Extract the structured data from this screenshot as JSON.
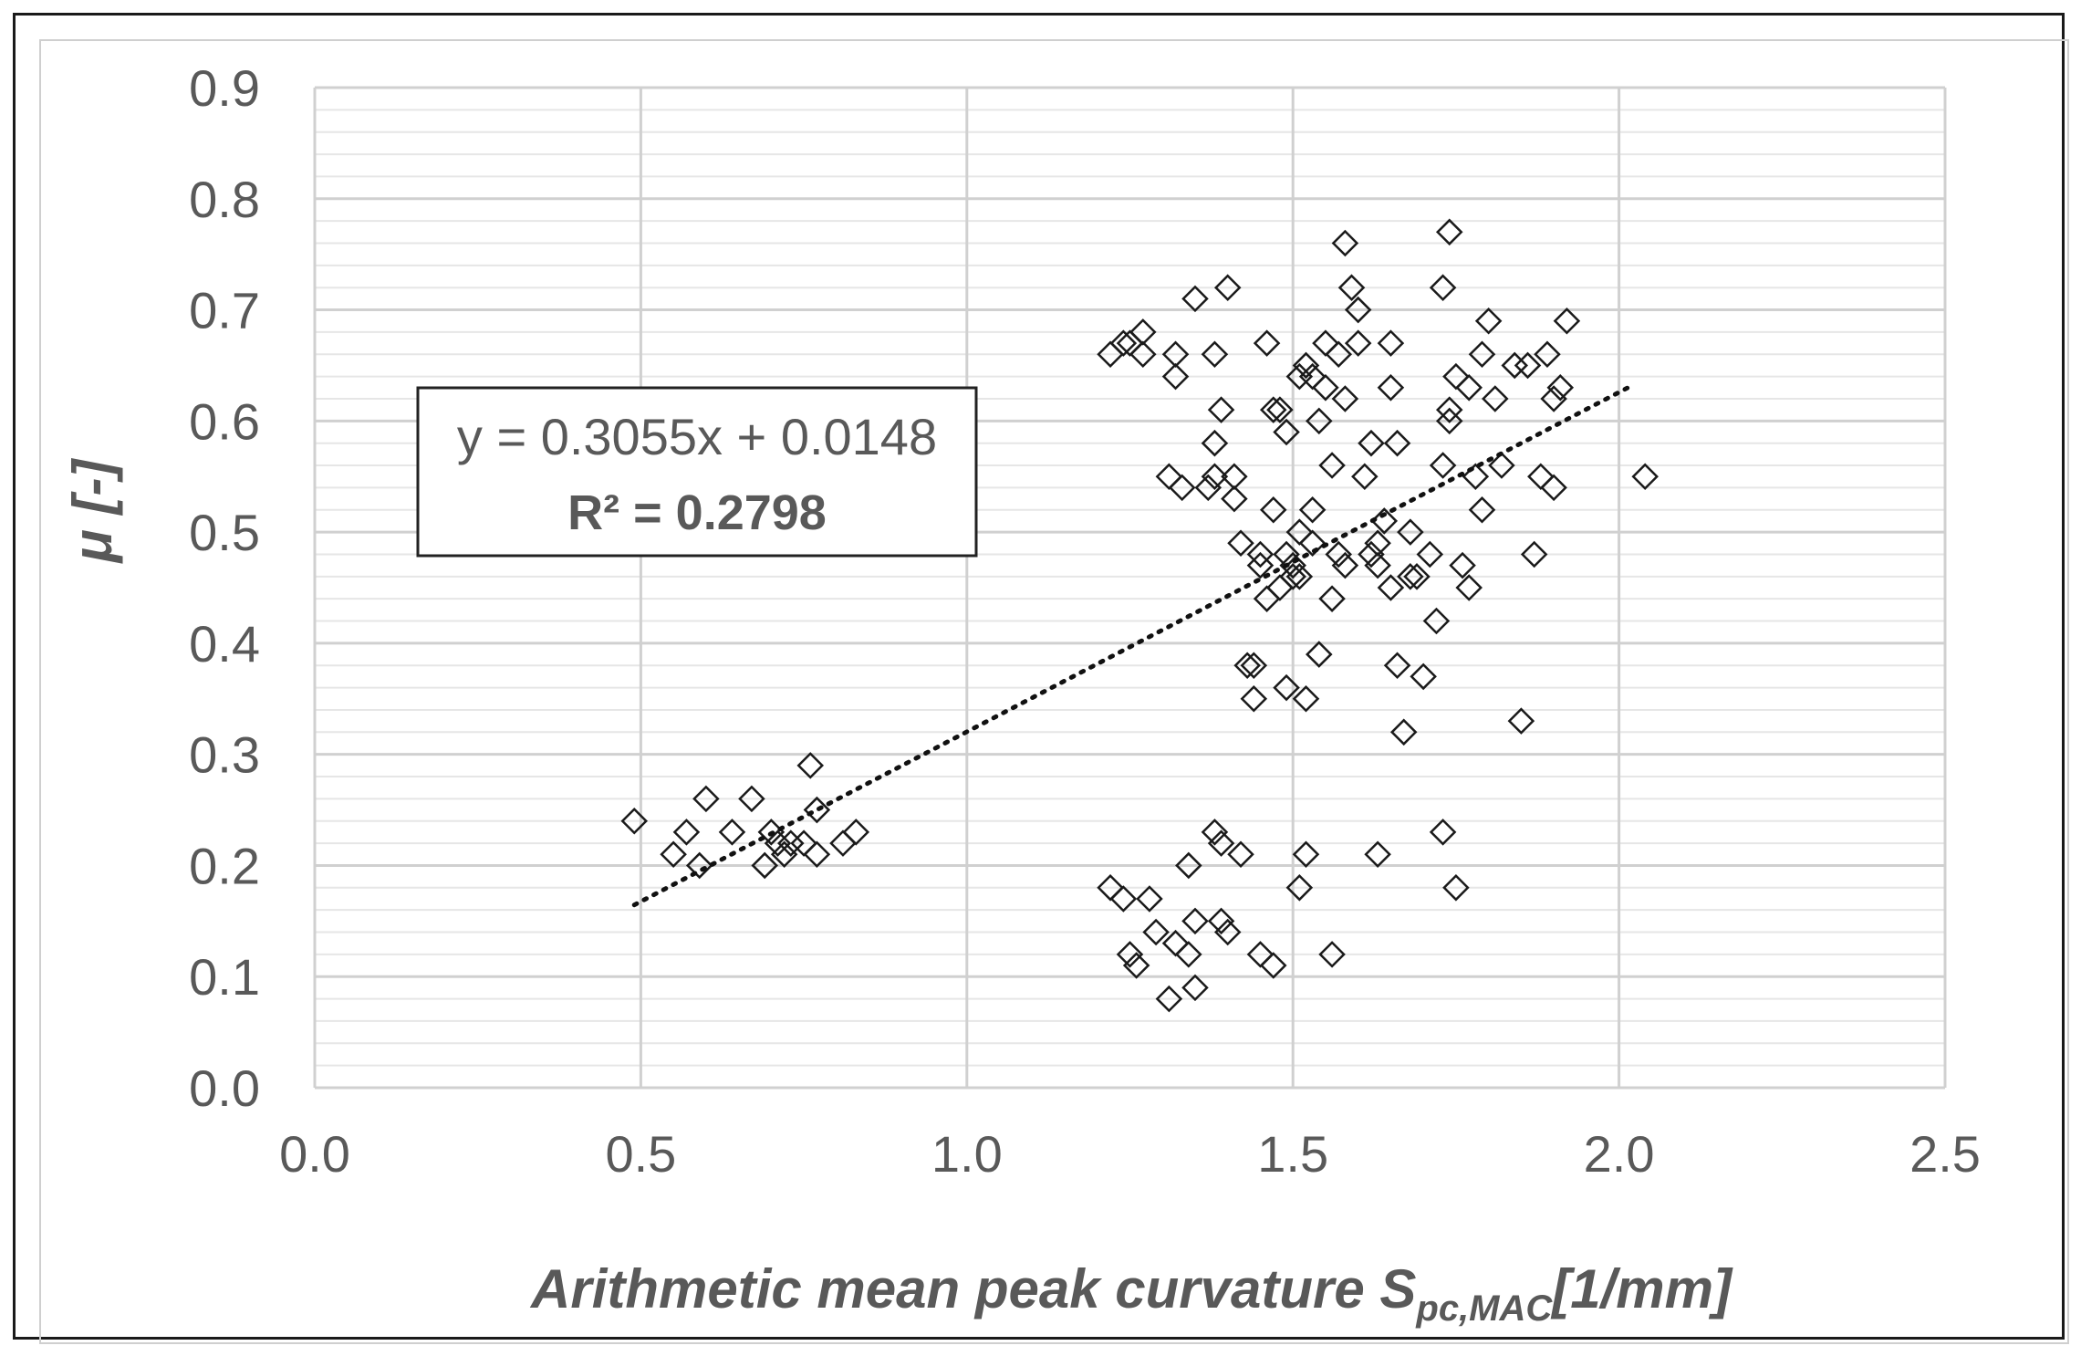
{
  "chart_data": {
    "type": "scatter",
    "xlabel_main": "Arithmetic mean peak curvature S",
    "xlabel_sub": "pc,MAC",
    "xlabel_unit": "[1/mm]",
    "ylabel": "μ [-]",
    "xlim": [
      0.0,
      2.5
    ],
    "ylim": [
      0.0,
      0.9
    ],
    "x_ticks": [
      "0.0",
      "0.5",
      "1.0",
      "1.5",
      "2.0",
      "2.5"
    ],
    "y_ticks": [
      "0.0",
      "0.1",
      "0.2",
      "0.3",
      "0.4",
      "0.5",
      "0.6",
      "0.7",
      "0.8",
      "0.9"
    ],
    "grid": true,
    "marker": "hollow-diamond",
    "trendline": {
      "type": "linear",
      "slope": 0.3055,
      "intercept": 0.0148,
      "x_range": [
        0.49,
        2.02
      ],
      "style": "dotted",
      "equation_label": "y = 0.3055x + 0.0148",
      "r2_label": "R² = 0.2798"
    },
    "series": [
      {
        "points": [
          [
            0.49,
            0.24
          ],
          [
            0.55,
            0.21
          ],
          [
            0.57,
            0.23
          ],
          [
            0.59,
            0.2
          ],
          [
            0.6,
            0.26
          ],
          [
            0.64,
            0.23
          ],
          [
            0.67,
            0.26
          ],
          [
            0.69,
            0.2
          ],
          [
            0.7,
            0.23
          ],
          [
            0.71,
            0.22
          ],
          [
            0.72,
            0.21
          ],
          [
            0.73,
            0.22
          ],
          [
            0.75,
            0.22
          ],
          [
            0.76,
            0.29
          ],
          [
            0.77,
            0.21
          ],
          [
            0.77,
            0.25
          ],
          [
            0.81,
            0.22
          ],
          [
            0.83,
            0.23
          ],
          [
            1.22,
            0.18
          ],
          [
            1.24,
            0.17
          ],
          [
            1.25,
            0.12
          ],
          [
            1.26,
            0.11
          ],
          [
            1.28,
            0.17
          ],
          [
            1.29,
            0.14
          ],
          [
            1.31,
            0.08
          ],
          [
            1.32,
            0.13
          ],
          [
            1.34,
            0.12
          ],
          [
            1.34,
            0.2
          ],
          [
            1.35,
            0.09
          ],
          [
            1.35,
            0.15
          ],
          [
            1.38,
            0.23
          ],
          [
            1.39,
            0.22
          ],
          [
            1.39,
            0.15
          ],
          [
            1.4,
            0.14
          ],
          [
            1.42,
            0.21
          ],
          [
            1.45,
            0.12
          ],
          [
            1.47,
            0.11
          ],
          [
            1.51,
            0.18
          ],
          [
            1.52,
            0.21
          ],
          [
            1.56,
            0.12
          ],
          [
            1.63,
            0.21
          ],
          [
            1.73,
            0.23
          ],
          [
            1.75,
            0.18
          ],
          [
            1.22,
            0.66
          ],
          [
            1.24,
            0.67
          ],
          [
            1.25,
            0.67
          ],
          [
            1.27,
            0.68
          ],
          [
            1.27,
            0.66
          ],
          [
            1.31,
            0.55
          ],
          [
            1.32,
            0.66
          ],
          [
            1.32,
            0.64
          ],
          [
            1.33,
            0.54
          ],
          [
            1.35,
            0.71
          ],
          [
            1.37,
            0.54
          ],
          [
            1.38,
            0.55
          ],
          [
            1.38,
            0.66
          ],
          [
            1.38,
            0.58
          ],
          [
            1.39,
            0.61
          ],
          [
            1.4,
            0.72
          ],
          [
            1.41,
            0.53
          ],
          [
            1.41,
            0.55
          ],
          [
            1.42,
            0.49
          ],
          [
            1.43,
            0.38
          ],
          [
            1.44,
            0.35
          ],
          [
            1.44,
            0.38
          ],
          [
            1.45,
            0.47
          ],
          [
            1.45,
            0.48
          ],
          [
            1.46,
            0.67
          ],
          [
            1.46,
            0.44
          ],
          [
            1.47,
            0.52
          ],
          [
            1.47,
            0.61
          ],
          [
            1.48,
            0.45
          ],
          [
            1.48,
            0.61
          ],
          [
            1.49,
            0.36
          ],
          [
            1.49,
            0.59
          ],
          [
            1.49,
            0.48
          ],
          [
            1.5,
            0.46
          ],
          [
            1.5,
            0.47
          ],
          [
            1.51,
            0.46
          ],
          [
            1.51,
            0.5
          ],
          [
            1.51,
            0.64
          ],
          [
            1.52,
            0.65
          ],
          [
            1.52,
            0.35
          ],
          [
            1.53,
            0.49
          ],
          [
            1.53,
            0.52
          ],
          [
            1.53,
            0.64
          ],
          [
            1.54,
            0.39
          ],
          [
            1.54,
            0.6
          ],
          [
            1.55,
            0.67
          ],
          [
            1.55,
            0.63
          ],
          [
            1.56,
            0.44
          ],
          [
            1.56,
            0.56
          ],
          [
            1.57,
            0.48
          ],
          [
            1.57,
            0.66
          ],
          [
            1.58,
            0.76
          ],
          [
            1.58,
            0.62
          ],
          [
            1.58,
            0.47
          ],
          [
            1.59,
            0.72
          ],
          [
            1.6,
            0.67
          ],
          [
            1.6,
            0.7
          ],
          [
            1.61,
            0.55
          ],
          [
            1.62,
            0.58
          ],
          [
            1.62,
            0.48
          ],
          [
            1.63,
            0.49
          ],
          [
            1.63,
            0.47
          ],
          [
            1.64,
            0.51
          ],
          [
            1.65,
            0.67
          ],
          [
            1.65,
            0.45
          ],
          [
            1.65,
            0.63
          ],
          [
            1.66,
            0.38
          ],
          [
            1.66,
            0.58
          ],
          [
            1.67,
            0.32
          ],
          [
            1.68,
            0.5
          ],
          [
            1.68,
            0.46
          ],
          [
            1.69,
            0.46
          ],
          [
            1.7,
            0.37
          ],
          [
            1.71,
            0.48
          ],
          [
            1.72,
            0.42
          ],
          [
            1.73,
            0.72
          ],
          [
            1.73,
            0.56
          ],
          [
            1.74,
            0.61
          ],
          [
            1.74,
            0.6
          ],
          [
            1.74,
            0.77
          ],
          [
            1.75,
            0.64
          ],
          [
            1.76,
            0.47
          ],
          [
            1.77,
            0.45
          ],
          [
            1.77,
            0.63
          ],
          [
            1.78,
            0.55
          ],
          [
            1.79,
            0.52
          ],
          [
            1.79,
            0.66
          ],
          [
            1.8,
            0.69
          ],
          [
            1.81,
            0.62
          ],
          [
            1.82,
            0.56
          ],
          [
            1.84,
            0.65
          ],
          [
            1.85,
            0.33
          ],
          [
            1.86,
            0.65
          ],
          [
            1.87,
            0.48
          ],
          [
            1.88,
            0.55
          ],
          [
            1.89,
            0.66
          ],
          [
            1.9,
            0.54
          ],
          [
            1.9,
            0.62
          ],
          [
            1.91,
            0.63
          ],
          [
            1.92,
            0.69
          ],
          [
            2.04,
            0.55
          ]
        ]
      }
    ]
  }
}
